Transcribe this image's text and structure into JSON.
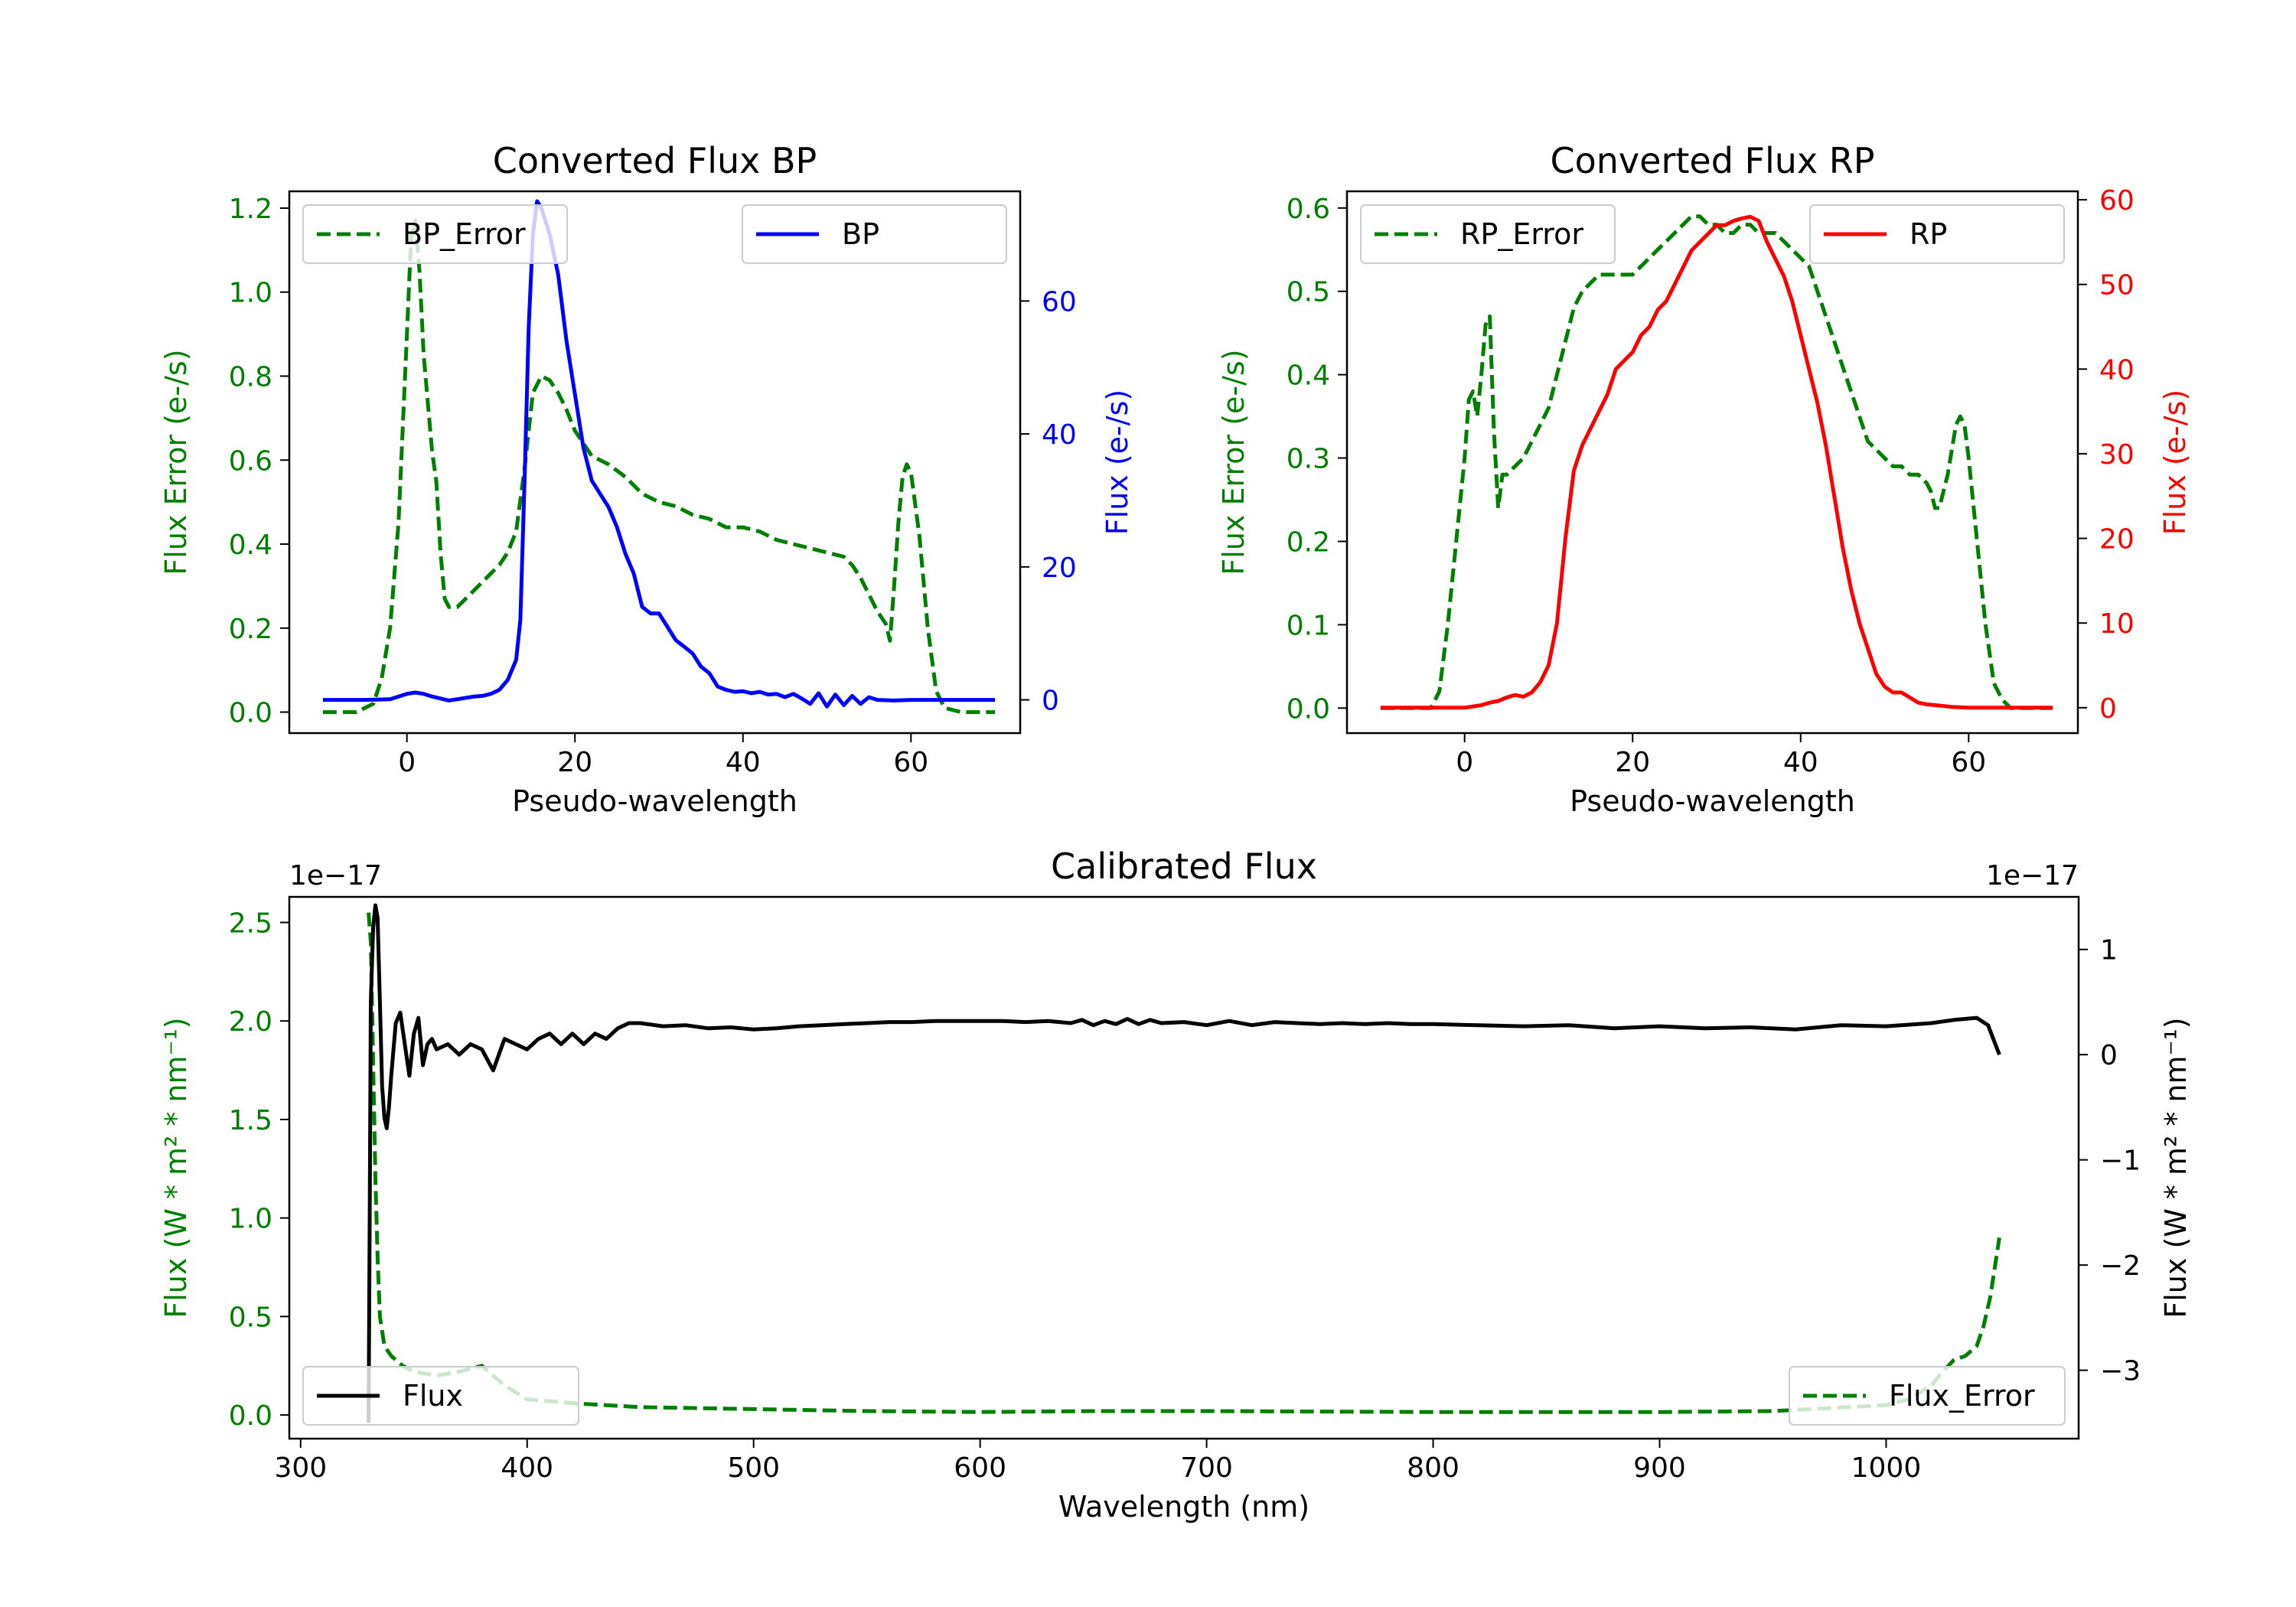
{
  "chart_data": [
    {
      "type": "line",
      "id": "bp",
      "title": "Converted Flux BP",
      "xlabel": "Pseudo-wavelength",
      "ylabel_left": "Flux Error (e-/s)",
      "ylabel_right": "Flux (e-/s)",
      "xlim": [
        -14,
        73
      ],
      "ylim_left": [
        -0.05,
        1.24
      ],
      "ylim_right": [
        -5,
        76.5
      ],
      "xticks": [
        0,
        20,
        40,
        60
      ],
      "yticks_left": [
        0.0,
        0.2,
        0.4,
        0.6,
        0.8,
        1.0,
        1.2
      ],
      "yticks_left_labels": [
        "0.0",
        "0.2",
        "0.4",
        "0.6",
        "0.8",
        "1.0",
        "1.2"
      ],
      "yticks_right": [
        0,
        20,
        40,
        60
      ],
      "colors": {
        "left": "#008000",
        "right": "#0000ff"
      },
      "legend_left": "top-left",
      "legend_right": "top-right",
      "series": [
        {
          "name": "BP_Error",
          "axis": "left",
          "color": "#008000",
          "style": "dashed",
          "x": [
            -10,
            -6,
            -4,
            -3,
            -2,
            -1,
            0,
            0.5,
            1,
            1.5,
            2,
            3,
            3.5,
            4,
            4.5,
            5,
            6,
            7,
            8,
            9,
            10,
            11,
            12,
            13,
            14,
            15,
            16,
            17,
            18,
            19,
            20,
            21,
            22,
            24,
            26,
            28,
            30,
            32,
            34,
            36,
            38,
            40,
            42,
            44,
            46,
            48,
            50,
            52,
            53,
            54,
            55,
            56,
            57,
            57.5,
            58,
            58.5,
            59,
            59.5,
            60,
            61,
            62,
            63,
            64,
            66,
            68,
            70
          ],
          "y": [
            0.0,
            0.0,
            0.02,
            0.08,
            0.2,
            0.45,
            0.9,
            1.13,
            1.17,
            1.05,
            0.85,
            0.62,
            0.55,
            0.38,
            0.27,
            0.25,
            0.25,
            0.27,
            0.29,
            0.31,
            0.33,
            0.35,
            0.38,
            0.43,
            0.58,
            0.76,
            0.8,
            0.79,
            0.76,
            0.72,
            0.67,
            0.64,
            0.61,
            0.59,
            0.56,
            0.52,
            0.5,
            0.49,
            0.47,
            0.46,
            0.44,
            0.44,
            0.43,
            0.41,
            0.4,
            0.39,
            0.38,
            0.37,
            0.35,
            0.32,
            0.28,
            0.24,
            0.21,
            0.17,
            0.3,
            0.45,
            0.56,
            0.59,
            0.57,
            0.42,
            0.2,
            0.05,
            0.01,
            0.0,
            0.0,
            0.0
          ]
        },
        {
          "name": "BP",
          "axis": "right",
          "color": "#0000ff",
          "style": "solid",
          "x": [
            -10,
            -5,
            -2,
            0,
            1,
            2,
            3,
            4,
            5,
            6,
            7,
            8,
            9,
            10,
            11,
            12,
            13,
            13.5,
            14,
            14.5,
            15,
            15.5,
            16,
            17,
            18,
            19,
            20,
            21,
            22,
            23,
            24,
            25,
            26,
            27,
            28,
            29,
            30,
            31,
            32,
            33,
            34,
            35,
            36,
            37,
            38,
            39,
            40,
            41,
            42,
            43,
            44,
            45,
            46,
            47,
            48,
            49,
            50,
            51,
            52,
            53,
            54,
            55,
            56,
            58,
            60,
            65,
            70
          ],
          "y": [
            0,
            0,
            0.1,
            0.9,
            1.1,
            0.9,
            0.5,
            0.2,
            -0.1,
            0.1,
            0.3,
            0.5,
            0.6,
            0.9,
            1.5,
            3,
            6,
            12,
            33,
            56,
            70,
            75,
            74,
            70,
            64,
            54,
            46,
            38,
            33,
            31,
            29,
            26,
            22,
            19,
            14,
            13,
            13,
            11,
            9,
            8,
            7,
            5,
            4,
            2,
            1.5,
            1.2,
            1.3,
            1.0,
            1.2,
            0.8,
            0.9,
            0.4,
            0.9,
            0.2,
            -0.6,
            1.0,
            -1.0,
            0.8,
            -0.8,
            0.6,
            -0.6,
            0.4,
            0,
            -0.1,
            0,
            0,
            0
          ]
        }
      ]
    },
    {
      "type": "line",
      "id": "rp",
      "title": "Converted Flux RP",
      "xlabel": "Pseudo-wavelength",
      "ylabel_left": "Flux Error (e-/s)",
      "ylabel_right": "Flux (e-/s)",
      "xlim": [
        -14,
        73
      ],
      "ylim_left": [
        -0.03,
        0.62
      ],
      "ylim_right": [
        -3,
        61
      ],
      "xticks": [
        0,
        20,
        40,
        60
      ],
      "yticks_left": [
        0.0,
        0.1,
        0.2,
        0.3,
        0.4,
        0.5,
        0.6
      ],
      "yticks_left_labels": [
        "0.0",
        "0.1",
        "0.2",
        "0.3",
        "0.4",
        "0.5",
        "0.6"
      ],
      "yticks_right": [
        0,
        10,
        20,
        30,
        40,
        50,
        60
      ],
      "colors": {
        "left": "#008000",
        "right": "#ff0000"
      },
      "legend_left": "top-left",
      "legend_right": "top-right",
      "series": [
        {
          "name": "RP_Error",
          "axis": "left",
          "color": "#008000",
          "style": "dashed",
          "x": [
            -10,
            -5,
            -4,
            -3,
            -2,
            -1,
            0,
            0.5,
            1,
            1.5,
            2,
            2.5,
            3,
            3.5,
            4,
            4.5,
            5,
            6,
            7,
            8,
            9,
            10,
            11,
            12,
            13,
            14,
            15,
            16,
            17,
            18,
            19,
            20,
            21,
            22,
            23,
            24,
            25,
            26,
            27,
            28,
            29,
            30,
            31,
            32,
            33,
            34,
            35,
            36,
            37,
            38,
            39,
            40,
            41,
            42,
            43,
            44,
            45,
            46,
            47,
            48,
            49,
            50,
            51,
            52,
            53,
            54,
            55,
            55.5,
            56,
            56.5,
            57,
            57.5,
            58,
            58.5,
            59,
            59.5,
            60,
            61,
            62,
            63,
            64,
            65,
            67,
            70
          ],
          "y": [
            0.0,
            0.0,
            0.0,
            0.02,
            0.1,
            0.2,
            0.3,
            0.37,
            0.38,
            0.35,
            0.4,
            0.46,
            0.47,
            0.33,
            0.24,
            0.28,
            0.28,
            0.29,
            0.3,
            0.32,
            0.34,
            0.36,
            0.4,
            0.44,
            0.48,
            0.5,
            0.51,
            0.52,
            0.52,
            0.52,
            0.52,
            0.52,
            0.53,
            0.54,
            0.55,
            0.56,
            0.57,
            0.58,
            0.59,
            0.59,
            0.58,
            0.58,
            0.57,
            0.57,
            0.58,
            0.58,
            0.57,
            0.57,
            0.57,
            0.56,
            0.55,
            0.54,
            0.53,
            0.5,
            0.47,
            0.44,
            0.41,
            0.38,
            0.35,
            0.32,
            0.31,
            0.3,
            0.29,
            0.29,
            0.28,
            0.28,
            0.27,
            0.26,
            0.24,
            0.24,
            0.26,
            0.28,
            0.31,
            0.34,
            0.35,
            0.34,
            0.3,
            0.2,
            0.1,
            0.03,
            0.01,
            0.0,
            0.0,
            0.0
          ]
        },
        {
          "name": "RP",
          "axis": "right",
          "color": "#ff0000",
          "style": "solid",
          "x": [
            -10,
            -5,
            -2,
            0,
            2,
            3,
            4,
            5,
            6,
            7,
            8,
            9,
            10,
            11,
            12,
            13,
            14,
            15,
            16,
            17,
            18,
            19,
            20,
            21,
            22,
            23,
            24,
            25,
            26,
            27,
            28,
            29,
            30,
            31,
            32,
            33,
            34,
            35,
            36,
            37,
            38,
            39,
            40,
            41,
            42,
            43,
            44,
            45,
            46,
            47,
            48,
            49,
            50,
            51,
            52,
            53,
            54,
            55,
            56,
            58,
            60,
            65,
            70
          ],
          "y": [
            0,
            0,
            0,
            0,
            0.3,
            0.6,
            0.8,
            1.2,
            1.5,
            1.3,
            1.8,
            3,
            5,
            10,
            20,
            28,
            31,
            33,
            35,
            37,
            40,
            41,
            42,
            44,
            45,
            47,
            48,
            50,
            52,
            54,
            55,
            56,
            57,
            57,
            57.5,
            57.8,
            58,
            57.5,
            55,
            53,
            51,
            48,
            44,
            40,
            36,
            31,
            25,
            19,
            14,
            10,
            7,
            4,
            2.5,
            1.8,
            1.8,
            1.2,
            0.6,
            0.4,
            0.3,
            0.1,
            0,
            0,
            0
          ]
        }
      ]
    },
    {
      "type": "line",
      "id": "cal",
      "title": "Calibrated Flux",
      "xlabel": "Wavelength (nm)",
      "ylabel_left": "Flux (W * m² * nm⁻¹)",
      "ylabel_right": "Flux (W * m² * nm⁻¹)",
      "offset_left": "1e−17",
      "offset_right": "1e−17",
      "xlim": [
        295,
        1085
      ],
      "ylim_left": [
        -0.12,
        2.63
      ],
      "ylim_right": [
        -3.65,
        1.5
      ],
      "xticks": [
        300,
        400,
        500,
        600,
        700,
        800,
        900,
        1000
      ],
      "yticks_left": [
        0.0,
        0.5,
        1.0,
        1.5,
        2.0,
        2.5
      ],
      "yticks_left_labels": [
        "0.0",
        "0.5",
        "1.0",
        "1.5",
        "2.0",
        "2.5"
      ],
      "yticks_right": [
        -3,
        -2,
        -1,
        0,
        1
      ],
      "yticks_right_labels": [
        "−3",
        "−2",
        "−1",
        "0",
        "1"
      ],
      "colors": {
        "left": "#008000",
        "right": "#000000"
      },
      "legend_left": "bottom-right",
      "legend_right": "bottom-left",
      "series": [
        {
          "name": "Flux_Error",
          "axis": "left",
          "color": "#008000",
          "style": "dashed",
          "x": [
            330,
            331,
            332,
            333,
            334,
            335,
            337,
            340,
            345,
            350,
            360,
            370,
            380,
            390,
            400,
            420,
            450,
            500,
            550,
            600,
            650,
            700,
            800,
            900,
            950,
            1000,
            1010,
            1020,
            1025,
            1030,
            1035,
            1040,
            1043,
            1046,
            1048,
            1050
          ],
          "y": [
            2.55,
            2.4,
            1.8,
            1.2,
            0.8,
            0.5,
            0.35,
            0.3,
            0.25,
            0.22,
            0.2,
            0.22,
            0.25,
            0.15,
            0.08,
            0.06,
            0.04,
            0.03,
            0.02,
            0.015,
            0.02,
            0.02,
            0.015,
            0.015,
            0.02,
            0.05,
            0.08,
            0.15,
            0.22,
            0.28,
            0.3,
            0.35,
            0.45,
            0.6,
            0.75,
            0.9
          ]
        },
        {
          "name": "Flux",
          "axis": "right",
          "color": "#000000",
          "style": "solid",
          "x": [
            330,
            330.5,
            331,
            332,
            333,
            334,
            335,
            336,
            337,
            338,
            339,
            340,
            342,
            344,
            346,
            348,
            350,
            352,
            354,
            356,
            358,
            360,
            365,
            370,
            375,
            380,
            385,
            390,
            395,
            400,
            405,
            410,
            415,
            420,
            425,
            430,
            435,
            440,
            445,
            450,
            460,
            470,
            480,
            490,
            500,
            510,
            520,
            530,
            540,
            550,
            560,
            570,
            580,
            590,
            600,
            610,
            620,
            630,
            640,
            645,
            650,
            655,
            660,
            665,
            670,
            675,
            680,
            690,
            700,
            710,
            720,
            730,
            740,
            750,
            760,
            770,
            780,
            790,
            800,
            820,
            840,
            860,
            880,
            900,
            920,
            940,
            960,
            980,
            1000,
            1020,
            1030,
            1040,
            1045,
            1050
          ],
          "y": [
            -3.5,
            -1.5,
            0.5,
            1.2,
            1.42,
            1.3,
            0.5,
            -0.3,
            -0.6,
            -0.7,
            -0.5,
            -0.2,
            0.3,
            0.4,
            0.1,
            -0.2,
            0.2,
            0.35,
            -0.1,
            0.1,
            0.15,
            0.05,
            0.1,
            0.0,
            0.1,
            0.05,
            -0.15,
            0.15,
            0.1,
            0.05,
            0.15,
            0.2,
            0.1,
            0.2,
            0.1,
            0.2,
            0.15,
            0.25,
            0.3,
            0.3,
            0.27,
            0.28,
            0.25,
            0.26,
            0.24,
            0.25,
            0.27,
            0.28,
            0.29,
            0.3,
            0.31,
            0.31,
            0.32,
            0.32,
            0.32,
            0.32,
            0.31,
            0.32,
            0.3,
            0.33,
            0.28,
            0.32,
            0.29,
            0.34,
            0.29,
            0.33,
            0.3,
            0.31,
            0.28,
            0.32,
            0.28,
            0.31,
            0.3,
            0.29,
            0.3,
            0.29,
            0.3,
            0.29,
            0.29,
            0.28,
            0.27,
            0.28,
            0.25,
            0.27,
            0.25,
            0.26,
            0.24,
            0.28,
            0.27,
            0.3,
            0.33,
            0.35,
            0.28,
            0.0
          ]
        }
      ]
    }
  ]
}
